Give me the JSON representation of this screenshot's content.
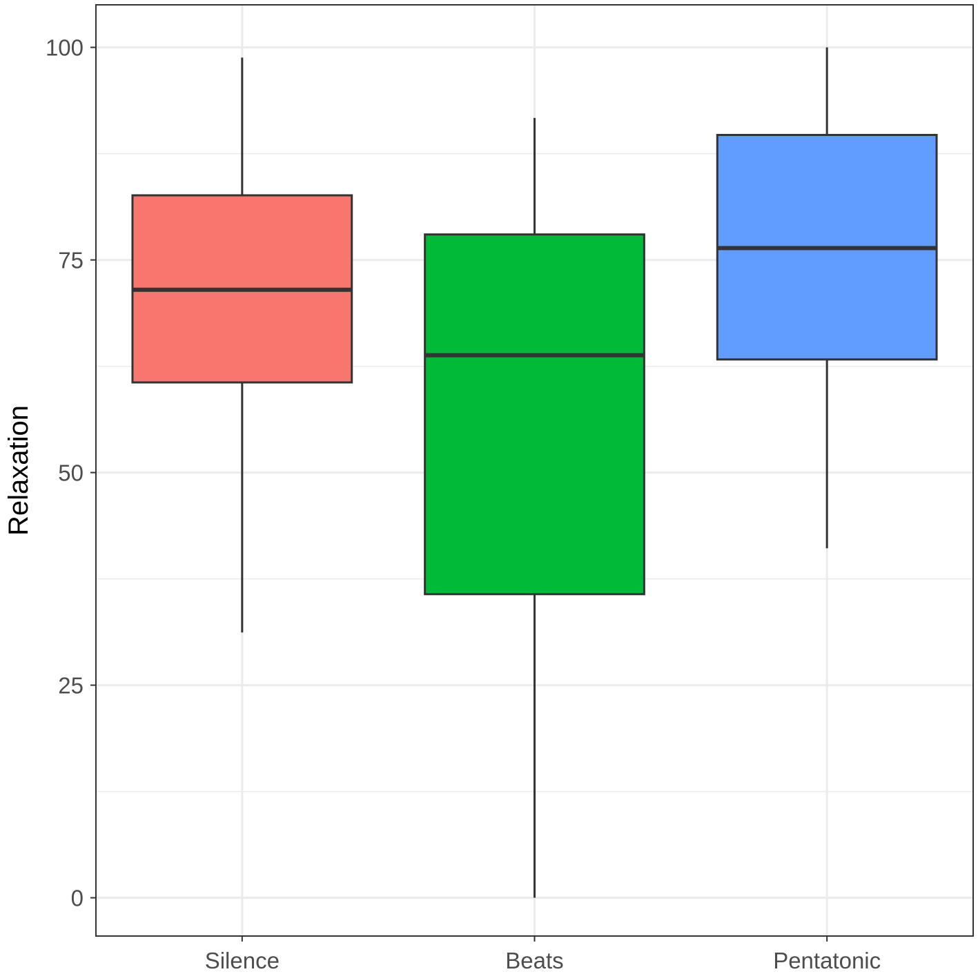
{
  "chart_data": {
    "type": "box",
    "title": "",
    "xlabel": "",
    "ylabel": "Relaxation",
    "ylim": [
      -4.5,
      105
    ],
    "yticks": [
      0,
      25,
      50,
      75,
      100
    ],
    "y_minor_grid": [
      12.5,
      37.5,
      62.5,
      87.5
    ],
    "grid": true,
    "legend": "none",
    "categories": [
      "Silence",
      "Beats",
      "Pentatonic"
    ],
    "boxes": [
      {
        "category": "Silence",
        "min": 31.2,
        "q1": 60.6,
        "median": 71.5,
        "q3": 82.6,
        "max": 98.8,
        "color": "#F8766D"
      },
      {
        "category": "Beats",
        "min": 0,
        "q1": 35.7,
        "median": 63.8,
        "q3": 78.0,
        "max": 91.7,
        "color": "#00BA38"
      },
      {
        "category": "Pentatonic",
        "min": 41.1,
        "q1": 63.3,
        "median": 76.4,
        "q3": 89.7,
        "max": 100,
        "color": "#619CFF"
      }
    ]
  }
}
